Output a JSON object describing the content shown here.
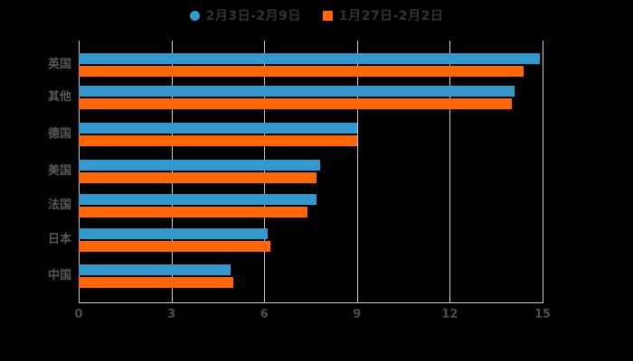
{
  "page": {
    "background": "#000000"
  },
  "legend": {
    "items": [
      {
        "label": "2月3日-2月9日",
        "color": "#3499cd",
        "marker": "circle"
      },
      {
        "label": "1月27日-2月2日",
        "color": "#ff6606",
        "marker": "square"
      }
    ]
  },
  "chart_data": {
    "type": "bar",
    "orientation": "horizontal",
    "title": "",
    "xlabel": "",
    "ylabel": "",
    "categories": [
      "英国",
      "其他",
      "德国",
      "美国",
      "法国",
      "日本",
      "中国"
    ],
    "series": [
      {
        "name": "2月3日-2月9日",
        "color": "#3499cd",
        "values": [
          14.9,
          14.1,
          9.0,
          7.8,
          7.7,
          6.1,
          4.9
        ]
      },
      {
        "name": "1月27日-2月2日",
        "color": "#ff6606",
        "values": [
          14.4,
          14.0,
          9.0,
          7.7,
          7.4,
          6.2,
          5.0
        ]
      }
    ],
    "xlim": [
      0,
      15
    ],
    "x_ticks": [
      0,
      3,
      6,
      9,
      12,
      15
    ],
    "x_tick_labels": [
      "0",
      "3",
      "6",
      "9",
      "12",
      "15"
    ],
    "grid": true,
    "legend_position": "top",
    "colors": {
      "background": "#000000",
      "gridline": "#c9c9c9",
      "axis_line": "#c9c9c9",
      "tick_label": "#4d4d4d",
      "category_label": "#595959",
      "legend_text": "#333333"
    }
  }
}
